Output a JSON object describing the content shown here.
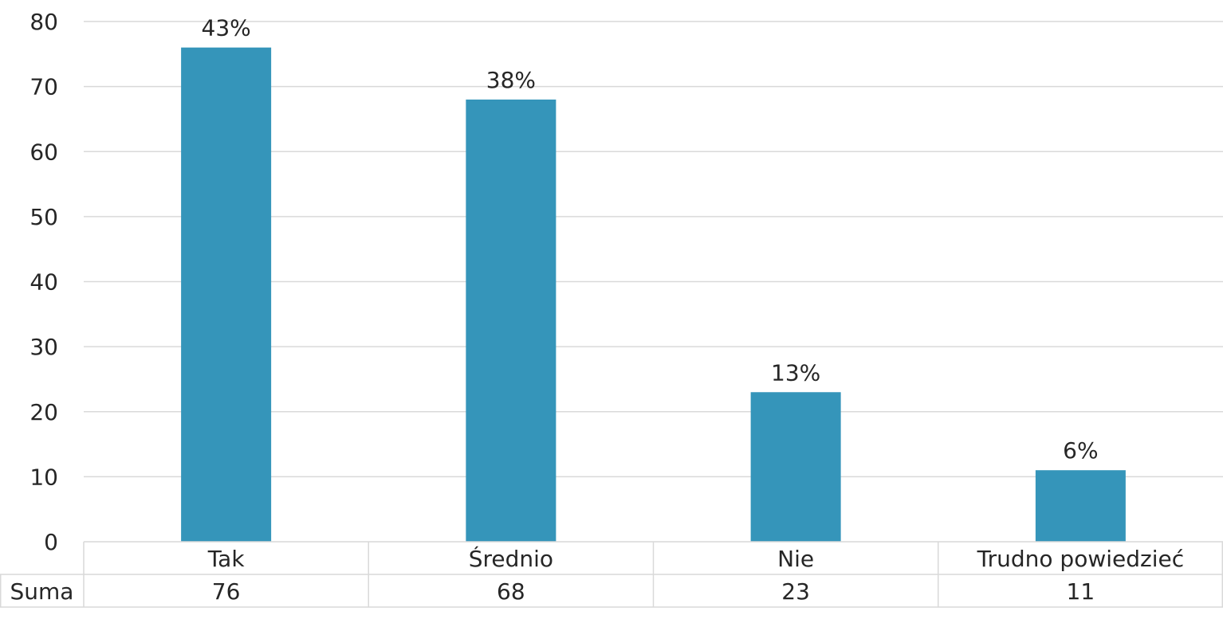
{
  "chart_data": {
    "type": "bar",
    "categories": [
      "Tak",
      "Średnio",
      "Nie",
      "Trudno powiedzieć"
    ],
    "series": [
      {
        "name": "Suma",
        "values": [
          76,
          68,
          23,
          11
        ],
        "data_labels": [
          "43%",
          "38%",
          "13%",
          "6%"
        ],
        "color": "#3595BA"
      }
    ],
    "y_ticks": [
      "0",
      "10",
      "20",
      "30",
      "40",
      "50",
      "60",
      "70",
      "80"
    ],
    "ylim": [
      0,
      80
    ],
    "grid": true,
    "data_table": {
      "row_header": "Suma",
      "values": [
        "76",
        "68",
        "23",
        "11"
      ]
    }
  },
  "colors": {
    "bar": "#3595BA",
    "grid": "#D9D9D9",
    "text": "#262626"
  }
}
